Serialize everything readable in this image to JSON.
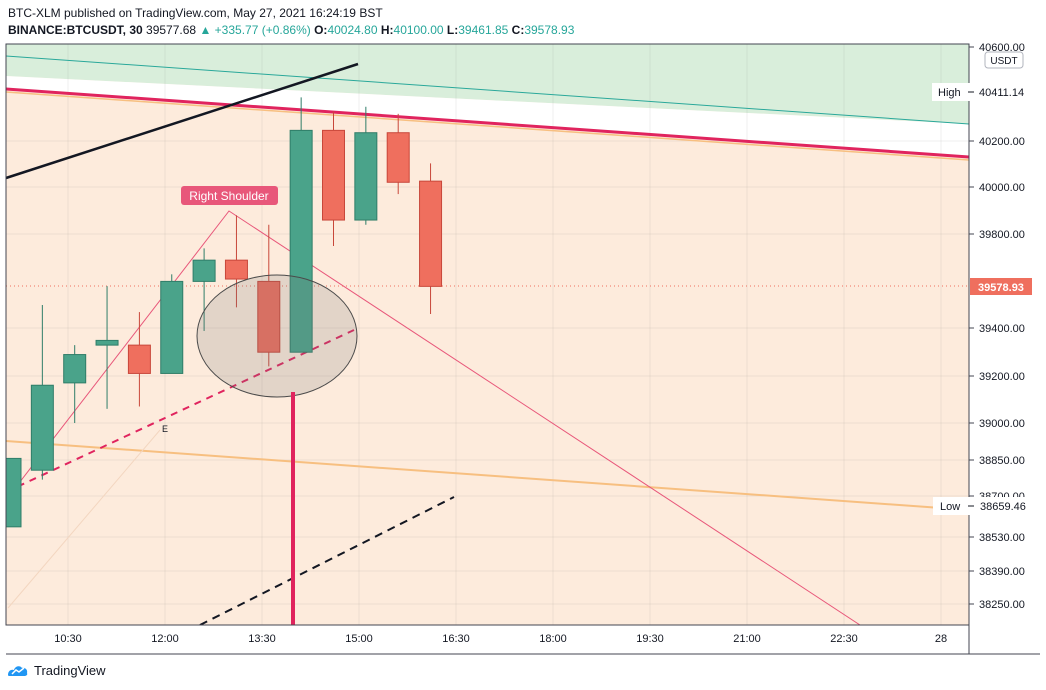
{
  "header": {
    "line1": "BTC-XLM published on TradingView.com, May 27, 2021 16:24:19 BST",
    "symbol": "BINANCE:BTCUSDT, 30",
    "last": "39577.68",
    "change": "+335.77 (+0.86%)",
    "o_label": "O:",
    "o_value": "40024.80",
    "h_label": "H:",
    "h_value": "40100.00",
    "l_label": "L:",
    "l_value": "39461.85",
    "c_label": "C:",
    "c_value": "39578.93"
  },
  "footer": {
    "brand": "TradingView"
  },
  "colors": {
    "up": "#4aa38a",
    "down": "#ef6f5e",
    "bg_zone": "#fdebdc",
    "top_zone": "#d9eedb",
    "pink": "#e0245e",
    "orange": "#f7bf80",
    "teal": "#2aa89a"
  },
  "chart_data": {
    "type": "candlestick",
    "currency": "USDT",
    "y_ticks": [
      "40600.00",
      "40200.00",
      "40000.00",
      "39800.00",
      "39400.00",
      "39200.00",
      "39000.00",
      "38850.00",
      "38700.00",
      "38530.00",
      "38390.00",
      "38250.00"
    ],
    "x_ticks": [
      "10:30",
      "12:00",
      "13:30",
      "15:00",
      "16:30",
      "18:00",
      "19:30",
      "21:00",
      "22:30",
      "28"
    ],
    "candles": [
      {
        "o": 38560,
        "h": 38850,
        "l": 38560,
        "c": 38850
      },
      {
        "o": 38800,
        "h": 39500,
        "l": 38760,
        "c": 39160
      },
      {
        "o": 39170,
        "h": 39330,
        "l": 39000,
        "c": 39290
      },
      {
        "o": 39330,
        "h": 39580,
        "l": 39060,
        "c": 39350
      },
      {
        "o": 39330,
        "h": 39470,
        "l": 39070,
        "c": 39210
      },
      {
        "o": 39210,
        "h": 39630,
        "l": 39210,
        "c": 39600
      },
      {
        "o": 39600,
        "h": 39740,
        "l": 39390,
        "c": 39690
      },
      {
        "o": 39690,
        "h": 39880,
        "l": 39490,
        "c": 39610
      },
      {
        "o": 39600,
        "h": 39840,
        "l": 39240,
        "c": 39300
      },
      {
        "o": 39300,
        "h": 40380,
        "l": 39300,
        "c": 40240
      },
      {
        "o": 40240,
        "h": 40320,
        "l": 39750,
        "c": 39860
      },
      {
        "o": 39860,
        "h": 40340,
        "l": 39840,
        "c": 40230
      },
      {
        "o": 40230,
        "h": 40310,
        "l": 39970,
        "c": 40020
      },
      {
        "o": 40024.8,
        "h": 40100,
        "l": 39461.85,
        "c": 39578.93
      }
    ],
    "markers": [
      {
        "label": "High",
        "value": "40411.14"
      },
      {
        "label": "Low",
        "value": "38659.46"
      }
    ],
    "last_price": "39578.93",
    "annotations": [
      {
        "text": "Right Shoulder"
      },
      {
        "text": "E"
      }
    ]
  }
}
